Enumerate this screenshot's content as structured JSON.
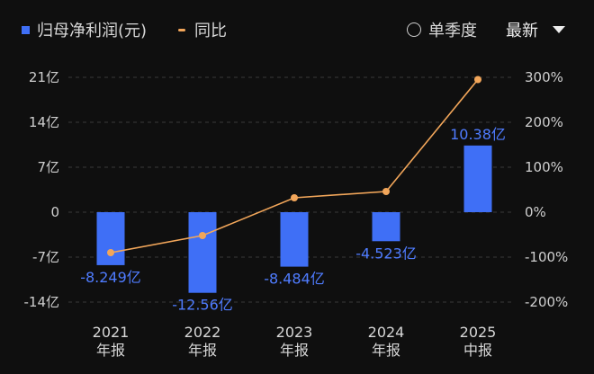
{
  "header": {
    "legend_bar_label": "归母净利润(元)",
    "legend_line_label": "同比",
    "radio_label": "单季度",
    "select_value": "最新"
  },
  "colors": {
    "bar": "#3f6ff6",
    "line": "#f2a65a",
    "background": "#0f0f0f",
    "data_label": "#4f7cff"
  },
  "chart_data": {
    "type": "bar",
    "categories": [
      [
        "2021",
        "年报"
      ],
      [
        "2022",
        "年报"
      ],
      [
        "2023",
        "年报"
      ],
      [
        "2024",
        "年报"
      ],
      [
        "2025",
        "中报"
      ]
    ],
    "series": [
      {
        "name": "归母净利润(元)",
        "type": "bar",
        "axis": "left",
        "values": [
          -8.249,
          -12.56,
          -8.484,
          -4.523,
          10.38
        ],
        "labels": [
          "-8.249亿",
          "-12.56亿",
          "-8.484亿",
          "-4.523亿",
          "10.38亿"
        ]
      },
      {
        "name": "同比",
        "type": "line",
        "axis": "right",
        "values": [
          -90,
          -52,
          32,
          46,
          295
        ]
      }
    ],
    "left_axis": {
      "ticks": [
        "21亿",
        "14亿",
        "7亿",
        "0",
        "-7亿",
        "-14亿"
      ],
      "tick_values": [
        21,
        14,
        7,
        0,
        -7,
        -14
      ],
      "ylim": [
        -14,
        21
      ]
    },
    "right_axis": {
      "ticks": [
        "300%",
        "200%",
        "100%",
        "0%",
        "-100%",
        "-200%"
      ],
      "tick_values": [
        300,
        200,
        100,
        0,
        -100,
        -200
      ],
      "ylim": [
        -200,
        300
      ]
    },
    "grid": "horizontal dashed",
    "legend": "top-left"
  }
}
